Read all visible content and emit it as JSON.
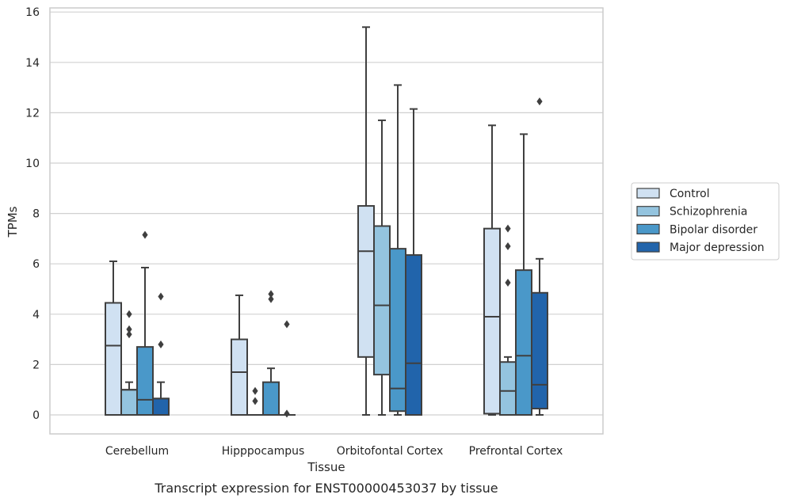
{
  "caption": "Transcript expression for ENST00000453037 by tissue",
  "chart_data": {
    "type": "box",
    "xlabel": "Tissue",
    "ylabel": "TPMs",
    "ylim": [
      -0.75,
      16.2
    ],
    "yticks": [
      0,
      2,
      4,
      6,
      8,
      10,
      12,
      14,
      16
    ],
    "grid": "horizontal",
    "legend_position": "right",
    "categories": [
      "Cerebellum",
      "Hipppocampus",
      "Orbitofontal Cortex",
      "Prefrontal Cortex"
    ],
    "series": [
      {
        "name": "Control",
        "color": "#d0e1f2",
        "boxes": [
          {
            "q1": 0,
            "median": 2.75,
            "q3": 4.45,
            "whisker_low": 0,
            "whisker_high": 6.1,
            "outliers": []
          },
          {
            "q1": 0,
            "median": 1.7,
            "q3": 3.0,
            "whisker_low": 0,
            "whisker_high": 4.75,
            "outliers": []
          },
          {
            "q1": 2.3,
            "median": 6.5,
            "q3": 8.3,
            "whisker_low": 0,
            "whisker_high": 15.4,
            "outliers": []
          },
          {
            "q1": 0.05,
            "median": 3.9,
            "q3": 7.4,
            "whisker_low": 0,
            "whisker_high": 11.5,
            "outliers": []
          }
        ]
      },
      {
        "name": "Schizophrenia",
        "color": "#94c4df",
        "boxes": [
          {
            "q1": 0,
            "median": 1.0,
            "q3": 1.0,
            "whisker_low": 0,
            "whisker_high": 1.3,
            "outliers": [
              3.2,
              3.4,
              4.0
            ]
          },
          {
            "q1": 0,
            "median": 0,
            "q3": 0,
            "whisker_low": 0,
            "whisker_high": 0,
            "outliers": [
              0.55,
              0.95
            ]
          },
          {
            "q1": 1.6,
            "median": 4.35,
            "q3": 7.5,
            "whisker_low": 0,
            "whisker_high": 11.7,
            "outliers": []
          },
          {
            "q1": 0,
            "median": 0.95,
            "q3": 2.1,
            "whisker_low": 0,
            "whisker_high": 2.3,
            "outliers": [
              5.25,
              6.7,
              7.4
            ]
          }
        ]
      },
      {
        "name": "Bipolar disorder",
        "color": "#4a98c9",
        "boxes": [
          {
            "q1": 0,
            "median": 0.6,
            "q3": 2.7,
            "whisker_low": 0,
            "whisker_high": 5.85,
            "outliers": [
              7.15
            ]
          },
          {
            "q1": 0,
            "median": 0,
            "q3": 1.3,
            "whisker_low": 0,
            "whisker_high": 1.85,
            "outliers": [
              4.6,
              4.8
            ]
          },
          {
            "q1": 0.15,
            "median": 1.05,
            "q3": 6.6,
            "whisker_low": 0,
            "whisker_high": 13.1,
            "outliers": []
          },
          {
            "q1": 0,
            "median": 2.35,
            "q3": 5.75,
            "whisker_low": 0,
            "whisker_high": 11.15,
            "outliers": []
          }
        ]
      },
      {
        "name": "Major depression",
        "color": "#2164ab",
        "boxes": [
          {
            "q1": 0,
            "median": 0.65,
            "q3": 0.65,
            "whisker_low": 0,
            "whisker_high": 1.3,
            "outliers": [
              2.8,
              4.7
            ]
          },
          {
            "q1": 0,
            "median": 0,
            "q3": 0,
            "whisker_low": 0,
            "whisker_high": 0,
            "outliers": [
              0.05,
              3.6
            ]
          },
          {
            "q1": 0,
            "median": 2.05,
            "q3": 6.35,
            "whisker_low": 0,
            "whisker_high": 12.15,
            "outliers": []
          },
          {
            "q1": 0.25,
            "median": 1.2,
            "q3": 4.85,
            "whisker_low": 0,
            "whisker_high": 6.2,
            "outliers": [
              12.45
            ]
          }
        ]
      }
    ]
  }
}
